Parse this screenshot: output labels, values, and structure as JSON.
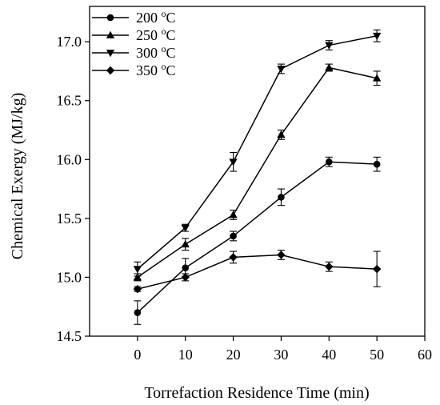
{
  "chart_data": {
    "type": "line",
    "title": "",
    "xlabel": "Torrefaction Residence Time (min)",
    "ylabel": "Chemical Exergy (MJ/kg)",
    "xlim": [
      -10,
      60
    ],
    "ylim": [
      14.5,
      17.3
    ],
    "xticks": [
      "0",
      "10",
      "20",
      "30",
      "40",
      "50",
      "60"
    ],
    "yticks": [
      "14.5",
      "15.0",
      "15.5",
      "16.0",
      "16.5",
      "17.0"
    ],
    "grid": false,
    "legend_position": "top-left",
    "x": [
      0,
      10,
      20,
      30,
      40,
      50
    ],
    "series": [
      {
        "name": "200 °C",
        "marker": "circle",
        "values": [
          14.7,
          15.08,
          15.35,
          15.68,
          15.98,
          15.96
        ],
        "errors": [
          0.1,
          0.08,
          0.04,
          0.07,
          0.04,
          0.06
        ]
      },
      {
        "name": "250 °C",
        "marker": "triangle-up",
        "values": [
          15.0,
          15.28,
          15.53,
          16.21,
          16.78,
          16.69
        ],
        "errors": [
          0.03,
          0.05,
          0.04,
          0.04,
          0.03,
          0.06
        ]
      },
      {
        "name": "300 °C",
        "marker": "triangle-down",
        "values": [
          15.07,
          15.42,
          15.98,
          16.77,
          16.97,
          17.05
        ],
        "errors": [
          0.06,
          0.03,
          0.08,
          0.04,
          0.04,
          0.05
        ]
      },
      {
        "name": "350 °C",
        "marker": "diamond",
        "values": [
          14.9,
          15.0,
          15.17,
          15.19,
          15.09,
          15.07
        ],
        "errors": [
          0.02,
          0.03,
          0.05,
          0.04,
          0.04,
          0.15
        ]
      }
    ]
  },
  "legend": {
    "items": [
      {
        "base": "200",
        "sup": "o",
        "unit": "C"
      },
      {
        "base": "250",
        "sup": "o",
        "unit": "C"
      },
      {
        "base": "300",
        "sup": "o",
        "unit": "C"
      },
      {
        "base": "350",
        "sup": "o",
        "unit": "C"
      }
    ]
  },
  "colors": {
    "line": "#000000",
    "background": "#ffffff"
  }
}
